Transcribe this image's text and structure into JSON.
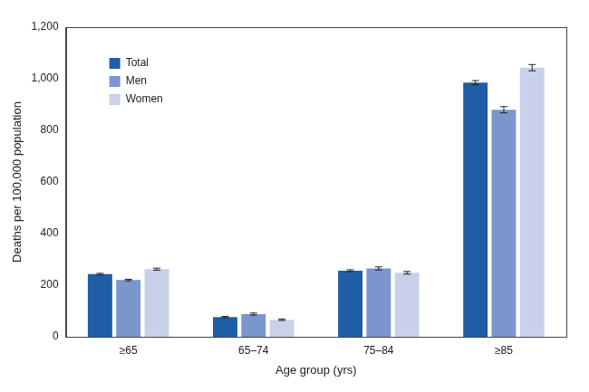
{
  "chart_data": {
    "type": "bar",
    "categories": [
      "≥65",
      "65–74",
      "75–84",
      "≥85"
    ],
    "x_label": "Age group (yrs)",
    "y_label": "Deaths per 100,000 population",
    "series": [
      {
        "name": "Total",
        "color": "#1f5ea6",
        "values": [
          243,
          76,
          256,
          985
        ],
        "errors": [
          3,
          3,
          4,
          8
        ]
      },
      {
        "name": "Men",
        "color": "#7b96cc",
        "values": [
          220,
          88,
          265,
          880
        ],
        "errors": [
          3,
          4,
          6,
          12
        ]
      },
      {
        "name": "Women",
        "color": "#c9d1ea",
        "values": [
          262,
          66,
          248,
          1043
        ],
        "errors": [
          4,
          3,
          5,
          12
        ]
      }
    ],
    "ylim": [
      0,
      1200
    ],
    "yticks": [
      0,
      200,
      400,
      600,
      800,
      {
        "value": 1000,
        "label": "1,000"
      },
      {
        "value": 1200,
        "label": "1,200"
      }
    ],
    "grid": false,
    "legend": "upper left"
  }
}
